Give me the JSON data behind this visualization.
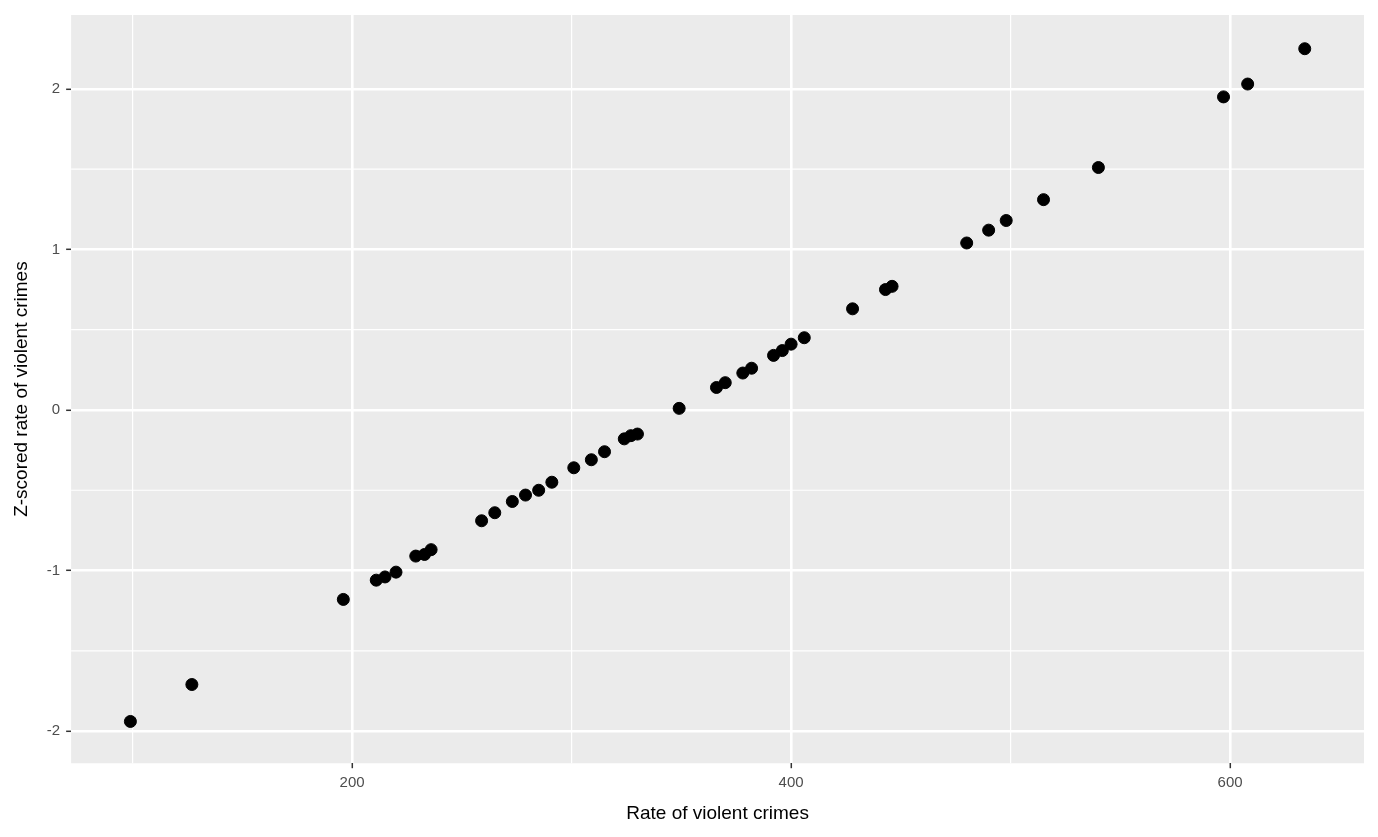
{
  "chart_data": {
    "type": "scatter",
    "xlabel": "Rate of violent crimes",
    "ylabel": "Z-scored rate of violent crimes",
    "xlim": [
      72,
      661
    ],
    "ylim": [
      -2.2,
      2.46
    ],
    "xticks": [
      200,
      400,
      600
    ],
    "yticks": [
      -2,
      -1,
      0,
      1,
      2
    ],
    "grid": true,
    "marker": "circle",
    "series": [
      {
        "color": "#000000",
        "x": [
          99,
          127,
          196,
          211,
          215,
          220,
          229,
          233,
          236,
          259,
          265,
          273,
          279,
          285,
          291,
          301,
          309,
          315,
          324,
          327,
          330,
          349,
          366,
          370,
          378,
          382,
          392,
          396,
          400,
          406,
          428,
          443,
          446,
          480,
          490,
          498,
          515,
          540,
          597,
          608,
          634
        ],
        "values": [
          -1.94,
          -1.71,
          -1.18,
          -1.06,
          -1.04,
          -1.01,
          -0.91,
          -0.9,
          -0.87,
          -0.69,
          -0.64,
          -0.57,
          -0.53,
          -0.5,
          -0.45,
          -0.36,
          -0.31,
          -0.26,
          -0.18,
          -0.16,
          -0.15,
          0.01,
          0.14,
          0.17,
          0.23,
          0.26,
          0.34,
          0.37,
          0.41,
          0.45,
          0.63,
          0.75,
          0.77,
          1.04,
          1.12,
          1.18,
          1.31,
          1.51,
          1.95,
          2.03,
          2.25
        ]
      }
    ]
  }
}
